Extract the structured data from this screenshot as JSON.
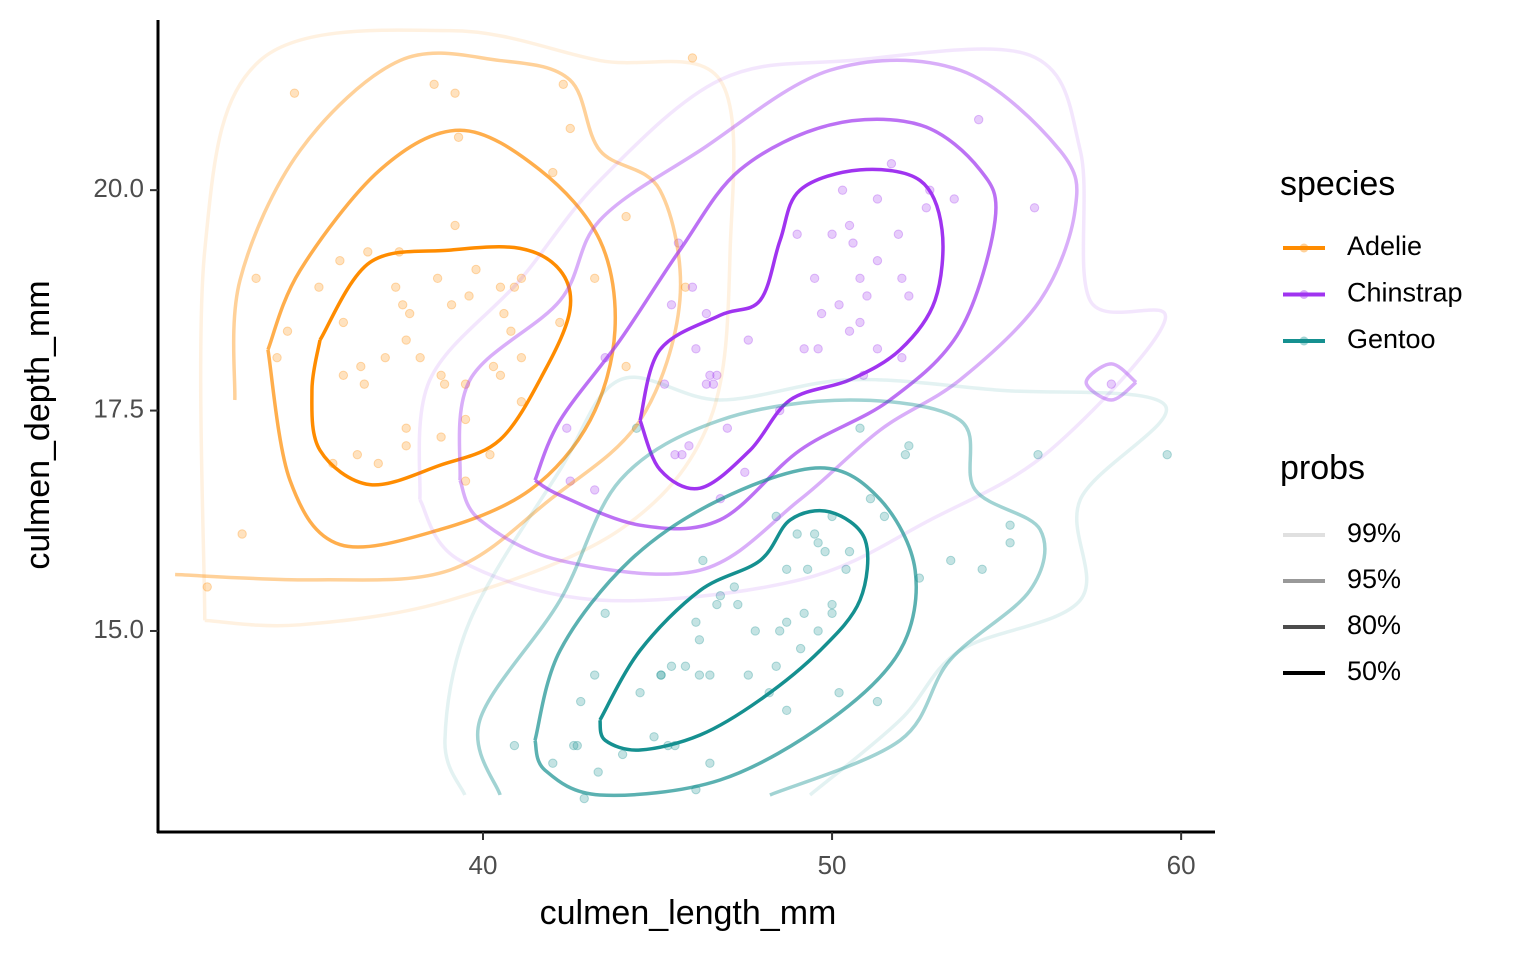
{
  "chart_data": {
    "type": "scatter",
    "xlabel": "culmen_length_mm",
    "ylabel": "culmen_depth_mm",
    "xlim": [
      30.69,
      60.97
    ],
    "ylim": [
      12.72,
      21.93
    ],
    "xticks": [
      40,
      50,
      60
    ],
    "yticks": [
      {
        "value": 20,
        "label": "20.0"
      },
      {
        "value": 17.5,
        "label": "17.5"
      },
      {
        "value": 15,
        "label": "15.0"
      }
    ],
    "legend_title": "species",
    "probs": {
      "title": "probs",
      "labels": [
        "99%",
        "95%",
        "80%",
        "50%"
      ],
      "alphas": [
        0.12,
        0.4,
        0.7,
        1
      ]
    },
    "series": [
      {
        "name": "Adelie",
        "color": "#ff8c00",
        "x": [
          39.1,
          39.5,
          40.3,
          36.7,
          39.3,
          38.9,
          39.2,
          34.1,
          42,
          37.8,
          37.8,
          41.1,
          38.6,
          34.6,
          36.6,
          38.7,
          42.5,
          34.4,
          46,
          37.8,
          37.7,
          35.9,
          38.2,
          38.8,
          35.3,
          40.6,
          40.5,
          37.9,
          40.5,
          39.5,
          37.2,
          39.5,
          40.9,
          36.4,
          39.2,
          38.8,
          42.2,
          37.6,
          39.8,
          36.5,
          40.8,
          36,
          44.1,
          37,
          39.6,
          41.1,
          37.5,
          36,
          42.3,
          32.1,
          33.5,
          33.1,
          35.7,
          41.1,
          45.8,
          40.2,
          43.2,
          44.1
        ],
        "y": [
          18.7,
          17.4,
          18,
          19.3,
          20.6,
          17.8,
          19.6,
          18.1,
          20.2,
          17.1,
          17.3,
          17.6,
          21.2,
          21.1,
          17.8,
          19,
          20.7,
          18.4,
          21.5,
          18.3,
          18.7,
          19.2,
          18.1,
          17.2,
          18.9,
          18.6,
          17.9,
          18.6,
          18.9,
          16.7,
          18.1,
          17.8,
          18.9,
          17,
          21.1,
          17.9,
          18.5,
          19.3,
          19.1,
          18,
          18.4,
          18.5,
          19.7,
          16.9,
          18.8,
          19,
          18.9,
          17.9,
          21.2,
          15.5,
          19,
          16.1,
          16.9,
          18.1,
          18.9,
          17,
          19,
          18
        ],
        "contours": [
          {
            "x": [
              32.03,
              32.03,
              33.61,
              39.05,
              43.35,
              46.79,
              47.08,
              46.5,
              43.93,
              39.05,
              34.76,
              32.03
            ],
            "y": [
              15.12,
              19.32,
              21.47,
              21.81,
              21.47,
              21.25,
              19.32,
              17.39,
              16.15,
              15.35,
              15.07,
              15.12
            ]
          },
          {
            "x": [
              32.89,
              33.04,
              34.76,
              37.62,
              40.49,
              42.49,
              43.35,
              45.07,
              45.64,
              44.5,
              41.92,
              39.05,
              35.24,
              31.18
            ],
            "y": [
              17.62,
              18.98,
              20.45,
              21.47,
              21.47,
              21.25,
              20.45,
              20,
              18.75,
              17.39,
              16.49,
              15.69,
              15.58,
              15.64
            ]
          },
          {
            "x": [
              33.84,
              34.76,
              37.05,
              39.34,
              41.63,
              43.35,
              43.78,
              43.07,
              41.35,
              38.77,
              35.9,
              34.47,
              33.84
            ],
            "y": [
              18.19,
              19.09,
              20.23,
              20.68,
              20.23,
              19.43,
              18.41,
              17.39,
              16.6,
              16.15,
              15.98,
              16.71,
              18.19
            ]
          },
          {
            "x": [
              35.33,
              36.76,
              39.05,
              41.06,
              42.21,
              42.49,
              41.78,
              40.49,
              38.77,
              36.76,
              35.33,
              35.1,
              35.33
            ],
            "y": [
              18.3,
              19.18,
              19.32,
              19.34,
              19.09,
              18.64,
              17.96,
              17.17,
              16.88,
              16.66,
              17.05,
              17.73,
              18.3
            ]
          }
        ]
      },
      {
        "name": "Chinstrap",
        "color": "#a034f0",
        "x": [
          46.5,
          50,
          51.3,
          45.4,
          52.7,
          45.2,
          46.1,
          51.3,
          46,
          51.3,
          46.6,
          51.7,
          47,
          52,
          45.9,
          50.5,
          50.3,
          58,
          46.4,
          49.2,
          42.4,
          48.5,
          43.2,
          50.6,
          46.7,
          52,
          50.5,
          49.5,
          46.4,
          52.8,
          54.2,
          42.5,
          51,
          49.7,
          47.5,
          47.6,
          52.2,
          45.6,
          51.9,
          46.8,
          45.7,
          55.8,
          43.5,
          49.6,
          50.8,
          50.2,
          53.5,
          49,
          45.5,
          50.9,
          50.8
        ],
        "y": [
          17.9,
          19.5,
          19.2,
          18.7,
          19.8,
          17.8,
          18.2,
          18.2,
          18.9,
          19.9,
          17.8,
          20.3,
          17.3,
          18.1,
          17.1,
          19.6,
          20,
          17.8,
          18.6,
          18.2,
          17.3,
          17.5,
          16.6,
          19.4,
          17.9,
          19,
          18.4,
          19,
          17.8,
          20,
          20.8,
          16.7,
          18.8,
          18.6,
          16.8,
          18.3,
          18.8,
          19.4,
          19.5,
          16.5,
          17,
          19.8,
          18.1,
          18.2,
          19,
          18.7,
          19.9,
          19.5,
          17,
          17.9,
          18.5
        ],
        "contours": [
          {
            "x": [
              38.19,
              38.48,
              41.06,
              43.35,
              46.79,
              50.52,
              55.67,
              57.11,
              57.39,
              59.54,
              56.25,
              52.81,
              49.08,
              43.35,
              39.34,
              38.19
            ],
            "y": [
              16.49,
              17.85,
              18.98,
              20.11,
              21.25,
              21.47,
              21.53,
              20.45,
              18.75,
              18.53,
              17.05,
              16.26,
              15.58,
              15.35,
              15.8,
              16.49
            ]
          },
          {
            "x": [
              39.34,
              39.63,
              42.21,
              43.35,
              46.22,
              49.94,
              53.67,
              56.53,
              56.96,
              55.96,
              53.67,
              51.38,
              49.08,
              46.22,
              42.21,
              39.91,
              39.34,
              null,
              58.71,
              58,
              57.28,
              58,
              58.71
            ],
            "y": [
              16.71,
              17.85,
              18.75,
              19.66,
              20.45,
              21.36,
              21.36,
              20.45,
              19.77,
              18.75,
              17.85,
              17.28,
              16.49,
              15.69,
              15.8,
              16.26,
              16.71,
              null,
              17.82,
              18.03,
              17.82,
              17.62,
              17.82
            ]
          },
          {
            "x": [
              41.49,
              42.21,
              43.93,
              45.64,
              47.36,
              49.94,
              52.52,
              54.24,
              54.67,
              53.67,
              51.66,
              49.08,
              46.79,
              44.5,
              42.21,
              41.49
            ],
            "y": [
              16.71,
              17.39,
              18.3,
              19.32,
              20.23,
              20.74,
              20.74,
              20.23,
              19.66,
              18.41,
              17.62,
              17.05,
              16.26,
              16.2,
              16.54,
              16.71
            ]
          },
          {
            "x": [
              44.5,
              45.07,
              46.79,
              47.94,
              48.51,
              49.08,
              50.8,
              52.52,
              53.15,
              52.95,
              51.95,
              50.52,
              48.8,
              47.65,
              46.22,
              45.07,
              44.5
            ],
            "y": [
              17.39,
              18.19,
              18.58,
              18.75,
              19.43,
              20,
              20.23,
              20.11,
              19.55,
              18.75,
              18.19,
              17.85,
              17.62,
              17.05,
              16.62,
              16.83,
              17.39
            ]
          }
        ]
      },
      {
        "name": "Gentoo",
        "color": "#159090",
        "x": [
          46.1,
          50,
          48.7,
          50,
          47.6,
          46.5,
          45.4,
          46.7,
          43.3,
          46.8,
          40.9,
          49,
          45.5,
          48.4,
          45.8,
          49.3,
          42,
          49.2,
          46.2,
          48.7,
          50.2,
          45.1,
          46.5,
          46.3,
          42.9,
          46.1,
          44.5,
          47.8,
          48.2,
          50,
          47.3,
          42.8,
          45.1,
          59.6,
          49.1,
          48.4,
          42.6,
          44.4,
          44,
          48.7,
          42.7,
          49.6,
          45.3,
          49.6,
          50.5,
          43.5,
          50.8,
          52.1,
          49.8,
          51.1,
          55.9,
          54.3,
          55.1,
          51.5,
          52.5,
          49.5,
          53.4,
          55.1,
          43.2,
          44.9,
          50.4,
          46.2,
          47.2,
          48.5,
          52.2,
          51.3
        ],
        "y": [
          13.2,
          16.3,
          14.1,
          15.2,
          14.5,
          13.5,
          14.6,
          15.3,
          13.4,
          15.4,
          13.7,
          16.1,
          13.7,
          14.6,
          14.6,
          15.7,
          13.5,
          15.2,
          14.5,
          15.1,
          14.3,
          14.5,
          14.5,
          15.8,
          13.1,
          15.1,
          14.3,
          15,
          14.3,
          15.3,
          15.3,
          14.2,
          14.5,
          17,
          14.8,
          16.3,
          13.7,
          17.3,
          13.6,
          15.7,
          13.7,
          16,
          13.7,
          15,
          15.9,
          15.2,
          17.3,
          17,
          15.9,
          16.5,
          17,
          15.7,
          16,
          16.3,
          15.6,
          16.1,
          15.8,
          16.2,
          14.5,
          13.8,
          15.7,
          14.9,
          15.5,
          15,
          17.1,
          14.2
        ],
        "contours": [
          {
            "x": [
              39.48,
              38.91,
              39.63,
              42.21,
              43.93,
              46.79,
              50.52,
              54.81,
              59.54,
              57.11,
              57.11,
              53.67,
              51.95,
              49.37
            ],
            "y": [
              13.14,
              13.76,
              15.12,
              16.83,
              17.85,
              17.62,
              17.85,
              17.73,
              17.56,
              16.49,
              15.35,
              14.78,
              13.99,
              13.14
            ]
          },
          {
            "x": [
              40.49,
              39.91,
              42.21,
              43.93,
              46.79,
              50.52,
              53.67,
              54.1,
              55.96,
              55.67,
              53.38,
              51.95,
              48.22
            ],
            "y": [
              13.14,
              13.99,
              15.35,
              16.71,
              17.39,
              17.62,
              17.39,
              16.6,
              16.15,
              15.46,
              14.67,
              13.76,
              13.14
            ]
          },
          {
            "x": [
              41.49,
              42.21,
              44.21,
              46.79,
              49.66,
              51.38,
              52.38,
              51.95,
              49.94,
              46.79,
              43.35,
              41.78,
              41.49
            ],
            "y": [
              13.76,
              14.78,
              15.8,
              16.49,
              16.85,
              16.49,
              15.69,
              14.78,
              13.99,
              13.31,
              13.14,
              13.42,
              13.76
            ]
          },
          {
            "x": [
              43.35,
              44.5,
              46.22,
              47.94,
              48.8,
              49.94,
              50.95,
              50.8,
              49.66,
              47.94,
              46.22,
              44.5,
              43.5,
              43.35
            ],
            "y": [
              13.99,
              14.78,
              15.46,
              15.8,
              16.26,
              16.35,
              16.03,
              15.35,
              14.78,
              14.22,
              13.82,
              13.65,
              13.76,
              13.99
            ]
          }
        ]
      }
    ]
  }
}
